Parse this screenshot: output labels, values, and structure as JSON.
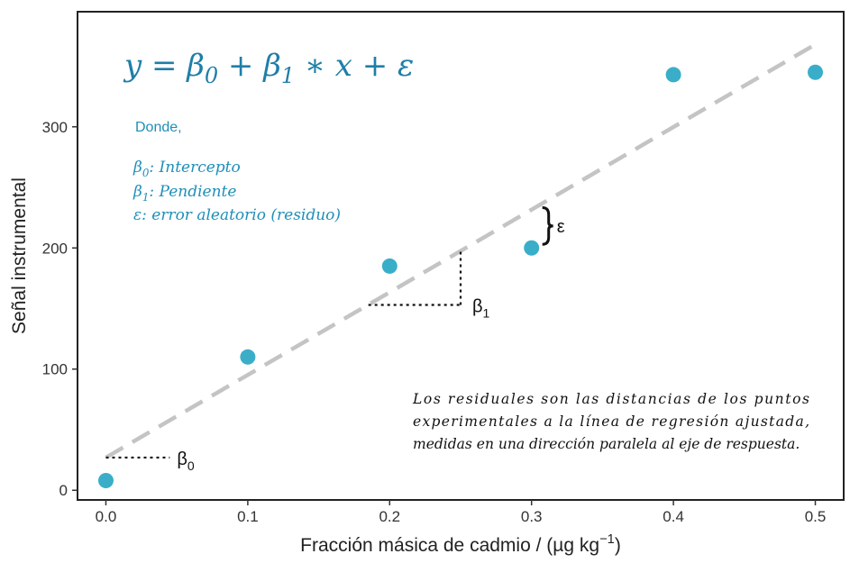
{
  "chart_data": {
    "type": "scatter",
    "xlabel": "Fracción másica de cadmio / (µg kg",
    "xlabel_sup": "−1",
    "xlabel_close": ")",
    "ylabel": "Señal instrumental",
    "xlim": [
      -0.02,
      0.52
    ],
    "ylim": [
      -8,
      395
    ],
    "x_ticks": [
      0.0,
      0.1,
      0.2,
      0.3,
      0.4,
      0.5
    ],
    "x_tick_labels": [
      "0.0",
      "0.1",
      "0.2",
      "0.3",
      "0.4",
      "0.5"
    ],
    "y_ticks": [
      0,
      100,
      200,
      300
    ],
    "y_tick_labels": [
      "0",
      "100",
      "200",
      "300"
    ],
    "grid": false,
    "points": {
      "x": [
        0.0,
        0.1,
        0.2,
        0.3,
        0.4,
        0.5
      ],
      "y": [
        8,
        110,
        185,
        200,
        343,
        345
      ],
      "color": "#3aaec9"
    },
    "regression_line": {
      "x": [
        0.0,
        0.5
      ],
      "y": [
        27,
        368
      ],
      "style": "dashed",
      "color": "#c4c4c4"
    },
    "intercept_marker": {
      "x": [
        0.0,
        0.045
      ],
      "y": 27,
      "label": "β",
      "label_sub": "0"
    },
    "slope_marker": {
      "x": [
        0.185,
        0.25
      ],
      "y": [
        153,
        199
      ],
      "label": "β",
      "label_sub": "1"
    },
    "residual_marker": {
      "x": 0.3,
      "y": [
        200,
        234
      ],
      "label": "ε"
    },
    "equation": {
      "lhs": "y = β",
      "sub0": "0",
      "mid": " + β",
      "sub1": "1",
      "rhs": " ∗ x + ε"
    },
    "legend_block": {
      "intro": "Donde,",
      "items": [
        {
          "symbol": "β",
          "sub": "0",
          "text": ": Intercepto"
        },
        {
          "symbol": "β",
          "sub": "1",
          "text": ": Pendiente"
        },
        {
          "symbol": "ε",
          "sub": "",
          "text": ": error aleatorio (residuo)"
        }
      ]
    },
    "note_lines": [
      "Los residuales son las distancias de los puntos",
      "experimentales a la línea de regresión ajustada,",
      "medidas en una dirección paralela al eje de respuesta."
    ]
  },
  "colors": {
    "point": "#3aaec9",
    "regression": "#c4c4c4",
    "equation": "#1f7ea8",
    "legend": "#1f8fb8",
    "axis": "#222222"
  }
}
